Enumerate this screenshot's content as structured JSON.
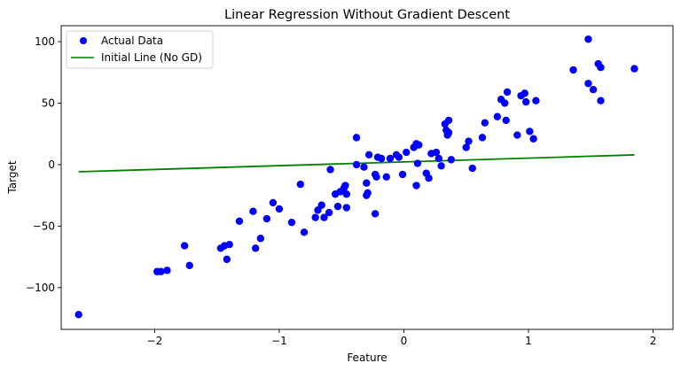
{
  "chart_data": {
    "type": "scatter",
    "title": "Linear Regression Without Gradient Descent",
    "xlabel": "Feature",
    "ylabel": "Target",
    "xlim": [
      -2.75,
      2.16
    ],
    "ylim": [
      -134,
      113
    ],
    "xticks": [
      -2,
      -1,
      0,
      1,
      2
    ],
    "xtick_labels": [
      "−2",
      "−1",
      "0",
      "1",
      "2"
    ],
    "yticks": [
      100,
      50,
      0,
      -50,
      -100
    ],
    "ytick_labels": [
      "100",
      "50",
      "0",
      "−50",
      "−100"
    ],
    "grid": false,
    "legend_position": "upper left",
    "series": [
      {
        "name": "Actual Data",
        "kind": "scatter",
        "color": "#0000ff",
        "points": [
          [
            -2.61,
            -122
          ],
          [
            -1.98,
            -87
          ],
          [
            -1.95,
            -87
          ],
          [
            -1.9,
            -86
          ],
          [
            -1.76,
            -66
          ],
          [
            -1.72,
            -82
          ],
          [
            -1.47,
            -68
          ],
          [
            -1.44,
            -66
          ],
          [
            -1.4,
            -65
          ],
          [
            -1.42,
            -77
          ],
          [
            -1.32,
            -46
          ],
          [
            -1.21,
            -38
          ],
          [
            -1.19,
            -68
          ],
          [
            -1.15,
            -60
          ],
          [
            -1.1,
            -44
          ],
          [
            -1.05,
            -31
          ],
          [
            -1.0,
            -36
          ],
          [
            -0.9,
            -47
          ],
          [
            -0.83,
            -16
          ],
          [
            -0.8,
            -55
          ],
          [
            -0.71,
            -43
          ],
          [
            -0.69,
            -37
          ],
          [
            -0.66,
            -33
          ],
          [
            -0.64,
            -43
          ],
          [
            -0.6,
            -39
          ],
          [
            -0.59,
            -4
          ],
          [
            -0.55,
            -24
          ],
          [
            -0.53,
            -34
          ],
          [
            -0.51,
            -22
          ],
          [
            -0.48,
            -19
          ],
          [
            -0.47,
            -17
          ],
          [
            -0.46,
            -24
          ],
          [
            -0.46,
            -35
          ],
          [
            -0.38,
            22
          ],
          [
            -0.38,
            0
          ],
          [
            -0.32,
            -2
          ],
          [
            -0.28,
            8
          ],
          [
            -0.3,
            -15
          ],
          [
            -0.3,
            -25
          ],
          [
            -0.29,
            -23
          ],
          [
            -0.23,
            -8
          ],
          [
            -0.22,
            -10
          ],
          [
            -0.21,
            6
          ],
          [
            -0.18,
            5
          ],
          [
            -0.23,
            -40
          ],
          [
            -0.14,
            -10
          ],
          [
            -0.11,
            5
          ],
          [
            -0.06,
            8
          ],
          [
            -0.04,
            6
          ],
          [
            -0.01,
            -8
          ],
          [
            0.02,
            10
          ],
          [
            0.08,
            14
          ],
          [
            0.1,
            17
          ],
          [
            0.12,
            16
          ],
          [
            0.1,
            -17
          ],
          [
            0.11,
            1
          ],
          [
            0.18,
            -7
          ],
          [
            0.2,
            -11
          ],
          [
            0.22,
            9
          ],
          [
            0.26,
            10
          ],
          [
            0.3,
            -1
          ],
          [
            0.28,
            5
          ],
          [
            0.33,
            33
          ],
          [
            0.36,
            36
          ],
          [
            0.34,
            28
          ],
          [
            0.35,
            24
          ],
          [
            0.36,
            26
          ],
          [
            0.38,
            4
          ],
          [
            0.5,
            14
          ],
          [
            0.52,
            19
          ],
          [
            0.55,
            -3
          ],
          [
            0.63,
            22
          ],
          [
            0.65,
            34
          ],
          [
            0.75,
            39
          ],
          [
            0.78,
            53
          ],
          [
            0.81,
            50
          ],
          [
            0.83,
            59
          ],
          [
            0.82,
            36
          ],
          [
            0.91,
            24
          ],
          [
            0.94,
            56
          ],
          [
            0.97,
            58
          ],
          [
            0.98,
            51
          ],
          [
            1.01,
            27
          ],
          [
            1.04,
            21
          ],
          [
            1.06,
            52
          ],
          [
            1.36,
            77
          ],
          [
            1.48,
            66
          ],
          [
            1.48,
            102
          ],
          [
            1.52,
            61
          ],
          [
            1.56,
            82
          ],
          [
            1.58,
            79
          ],
          [
            1.58,
            52
          ],
          [
            1.85,
            78
          ]
        ]
      },
      {
        "name": "Initial Line (No GD)",
        "kind": "line",
        "color": "#008000",
        "points": [
          [
            -2.61,
            -5.8
          ],
          [
            1.85,
            7.9
          ]
        ]
      }
    ]
  }
}
